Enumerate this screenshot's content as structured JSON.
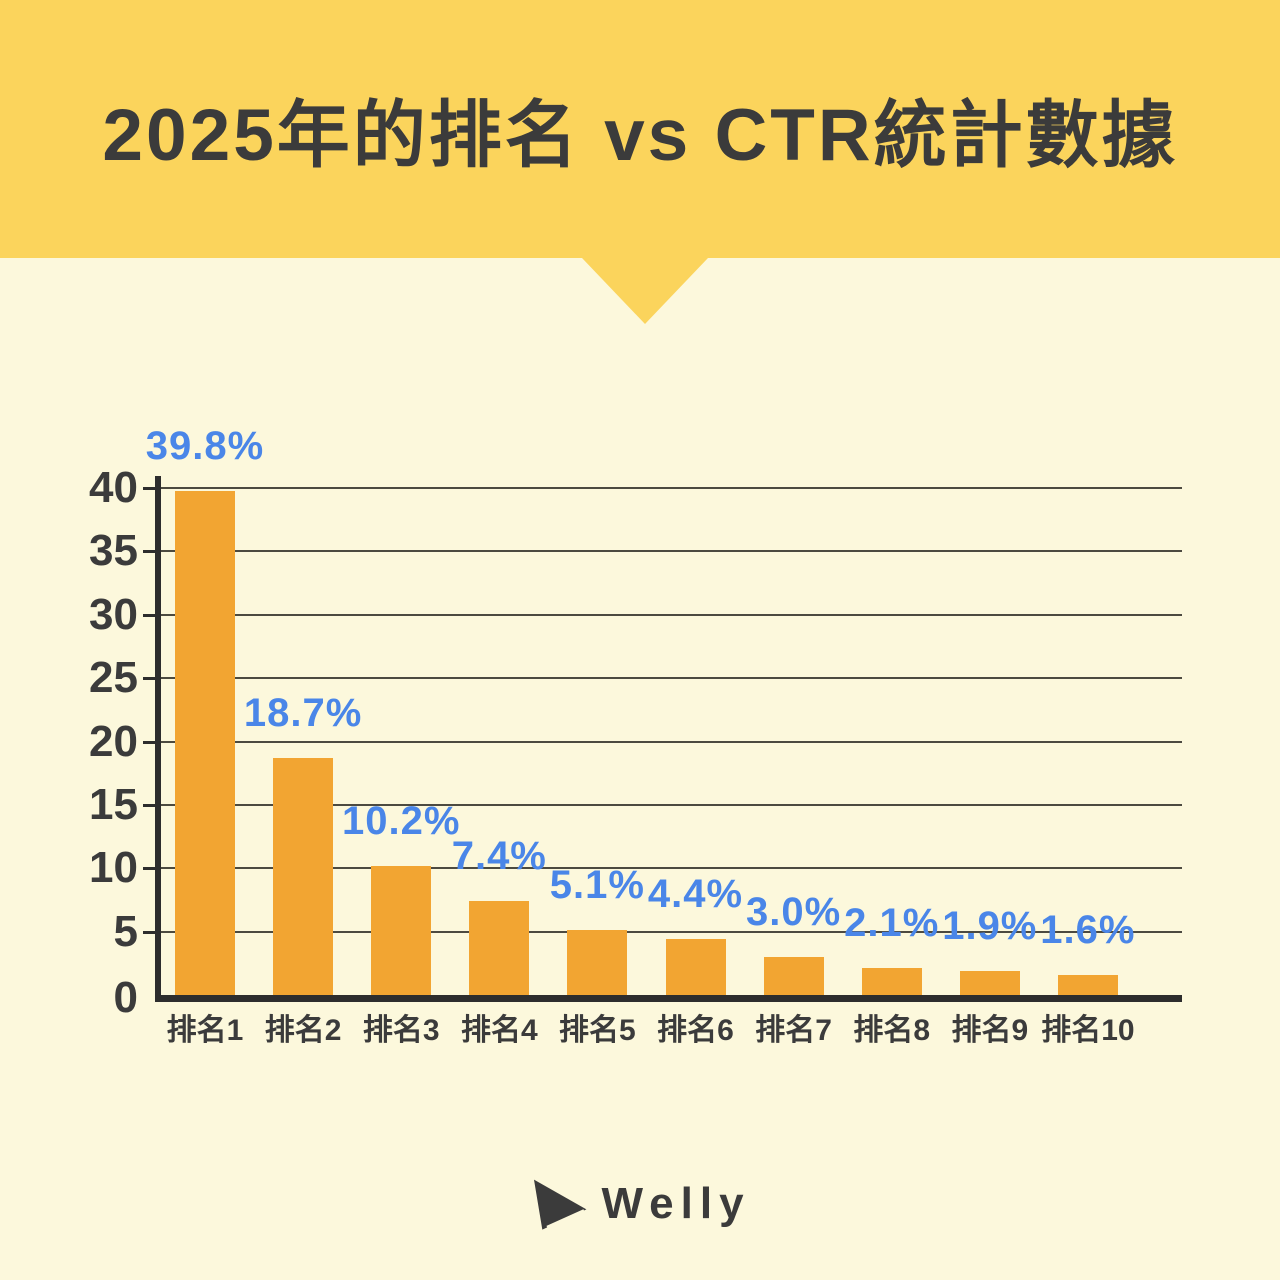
{
  "header": {
    "title": "2025年的排名 vs CTR統計數據"
  },
  "footer": {
    "brand": "Welly",
    "logo_icon": "paper-plane-icon"
  },
  "colors": {
    "banner_yellow": "#FBD45C",
    "background_cream": "#FCF8DC",
    "bar_orange": "#F2A532",
    "value_label_blue": "#4A86E8",
    "text_dark": "#3B3B3B",
    "axis_black": "#2D2D2D",
    "gridline": "#4C4A40"
  },
  "chart_data": {
    "type": "bar",
    "title": "2025年的排名 vs CTR統計數據",
    "categories": [
      "排名1",
      "排名2",
      "排名3",
      "排名4",
      "排名5",
      "排名6",
      "排名7",
      "排名8",
      "排名9",
      "排名10"
    ],
    "values": [
      39.8,
      18.7,
      10.2,
      7.4,
      5.1,
      4.4,
      3.0,
      2.1,
      1.9,
      1.6
    ],
    "value_labels": [
      "39.8%",
      "18.7%",
      "10.2%",
      "7.4%",
      "5.1%",
      "4.4%",
      "3.0%",
      "2.1%",
      "1.9%",
      "1.6%"
    ],
    "xlabel": "",
    "ylabel": "",
    "ylim": [
      0,
      40
    ],
    "yticks": [
      0,
      5,
      10,
      15,
      20,
      25,
      30,
      35,
      40
    ],
    "grid": true,
    "legend": false,
    "bar_color": "#F2A532",
    "value_label_color": "#4A86E8"
  }
}
